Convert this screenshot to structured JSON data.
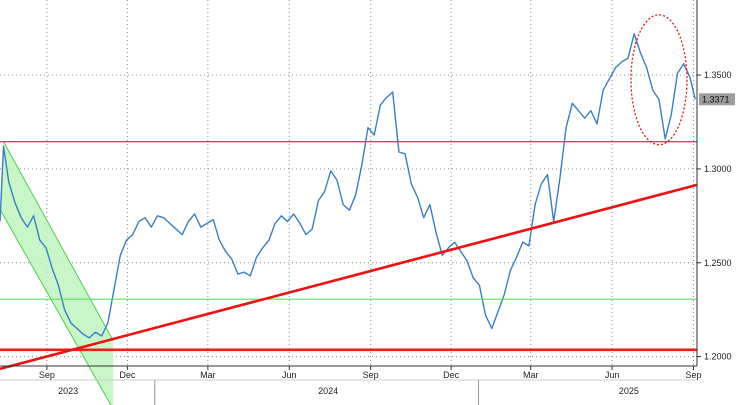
{
  "chart_data": {
    "type": "line",
    "series_color": "#3a7fc1",
    "grid": true,
    "x_range": [
      "2023-07-10",
      "2025-09-05"
    ],
    "y_range": [
      1.195,
      1.39
    ],
    "x_ticks": [
      {
        "date": "2023-09-01",
        "label": "Sep"
      },
      {
        "date": "2023-12-01",
        "label": "Dec"
      },
      {
        "date": "2024-03-01",
        "label": "Mar"
      },
      {
        "date": "2024-06-01",
        "label": "Jun"
      },
      {
        "date": "2024-09-01",
        "label": "Sep"
      },
      {
        "date": "2024-12-01",
        "label": "Dec"
      },
      {
        "date": "2025-03-01",
        "label": "Mar"
      },
      {
        "date": "2025-06-01",
        "label": "Jun"
      },
      {
        "date": "2025-09-01",
        "label": "Sep"
      }
    ],
    "year_labels": [
      {
        "label": "2023",
        "date": "2023-09-25"
      },
      {
        "label": "2024",
        "date": "2024-07-15"
      },
      {
        "label": "2025",
        "date": "2025-06-20"
      }
    ],
    "year_dividers": [
      "2024-01-01",
      "2025-01-01"
    ],
    "y_ticks": [
      {
        "value": 1.2,
        "label": "1.2000"
      },
      {
        "value": 1.25,
        "label": "1.2500"
      },
      {
        "value": 1.3,
        "label": "1.3000"
      },
      {
        "value": 1.35,
        "label": "1.3500"
      }
    ],
    "last_value": {
      "value": 1.3371,
      "label": "1.3371",
      "color": "#9e9e9e"
    },
    "series": [
      {
        "x": [
          "2023-07-10",
          "2023-07-14",
          "2023-07-20",
          "2023-07-27",
          "2023-08-03",
          "2023-08-10",
          "2023-08-17",
          "2023-08-24",
          "2023-08-31",
          "2023-09-07",
          "2023-09-14",
          "2023-09-21",
          "2023-09-28",
          "2023-10-05",
          "2023-10-12",
          "2023-10-19",
          "2023-10-26",
          "2023-11-02",
          "2023-11-09",
          "2023-11-16",
          "2023-11-23",
          "2023-11-30",
          "2023-12-07",
          "2023-12-14",
          "2023-12-21",
          "2023-12-28",
          "2024-01-04",
          "2024-01-11",
          "2024-01-18",
          "2024-01-25",
          "2024-02-01",
          "2024-02-08",
          "2024-02-15",
          "2024-02-22",
          "2024-02-29",
          "2024-03-07",
          "2024-03-14",
          "2024-03-21",
          "2024-03-28",
          "2024-04-04",
          "2024-04-11",
          "2024-04-18",
          "2024-04-25",
          "2024-05-02",
          "2024-05-09",
          "2024-05-16",
          "2024-05-23",
          "2024-05-30",
          "2024-06-06",
          "2024-06-13",
          "2024-06-20",
          "2024-06-27",
          "2024-07-04",
          "2024-07-11",
          "2024-07-18",
          "2024-07-25",
          "2024-08-01",
          "2024-08-08",
          "2024-08-15",
          "2024-08-22",
          "2024-08-29",
          "2024-09-05",
          "2024-09-12",
          "2024-09-19",
          "2024-09-26",
          "2024-10-03",
          "2024-10-10",
          "2024-10-17",
          "2024-10-24",
          "2024-10-31",
          "2024-11-07",
          "2024-11-14",
          "2024-11-21",
          "2024-11-28",
          "2024-12-05",
          "2024-12-12",
          "2024-12-19",
          "2024-12-26",
          "2025-01-02",
          "2025-01-09",
          "2025-01-16",
          "2025-01-23",
          "2025-01-30",
          "2025-02-06",
          "2025-02-13",
          "2025-02-20",
          "2025-02-27",
          "2025-03-06",
          "2025-03-13",
          "2025-03-20",
          "2025-03-27",
          "2025-04-03",
          "2025-04-10",
          "2025-04-17",
          "2025-04-24",
          "2025-05-01",
          "2025-05-08",
          "2025-05-15",
          "2025-05-22",
          "2025-05-29",
          "2025-06-05",
          "2025-06-12",
          "2025-06-19",
          "2025-06-26",
          "2025-07-03",
          "2025-07-10",
          "2025-07-17",
          "2025-07-24",
          "2025-07-31",
          "2025-08-07",
          "2025-08-14",
          "2025-08-21",
          "2025-08-28",
          "2025-09-03"
        ],
        "y": [
          1.272,
          1.312,
          1.293,
          1.282,
          1.274,
          1.269,
          1.275,
          1.262,
          1.258,
          1.247,
          1.238,
          1.225,
          1.218,
          1.215,
          1.212,
          1.21,
          1.213,
          1.211,
          1.218,
          1.236,
          1.254,
          1.262,
          1.265,
          1.272,
          1.274,
          1.269,
          1.275,
          1.274,
          1.271,
          1.268,
          1.265,
          1.272,
          1.276,
          1.269,
          1.271,
          1.273,
          1.262,
          1.256,
          1.252,
          1.244,
          1.245,
          1.243,
          1.253,
          1.258,
          1.262,
          1.271,
          1.275,
          1.272,
          1.276,
          1.271,
          1.265,
          1.268,
          1.283,
          1.288,
          1.299,
          1.294,
          1.281,
          1.278,
          1.286,
          1.302,
          1.322,
          1.318,
          1.334,
          1.338,
          1.341,
          1.309,
          1.308,
          1.292,
          1.285,
          1.274,
          1.281,
          1.266,
          1.254,
          1.258,
          1.261,
          1.256,
          1.251,
          1.242,
          1.238,
          1.222,
          1.215,
          1.224,
          1.233,
          1.246,
          1.253,
          1.261,
          1.259,
          1.281,
          1.292,
          1.297,
          1.272,
          1.295,
          1.322,
          1.335,
          1.331,
          1.327,
          1.331,
          1.324,
          1.342,
          1.348,
          1.354,
          1.357,
          1.359,
          1.372,
          1.362,
          1.354,
          1.342,
          1.337,
          1.316,
          1.329,
          1.351,
          1.356,
          1.349,
          1.3371
        ]
      }
    ],
    "annotations": {
      "support_line": {
        "value": 1.2036,
        "color": "#ff1a1a"
      },
      "resistance_line": {
        "value": 1.3145,
        "color": "#ff3366"
      },
      "green_line": {
        "value": 1.2306,
        "color": "#5ee05e"
      },
      "trendline": {
        "from": {
          "date": "2023-07-10",
          "value": 1.1935
        },
        "to": {
          "date": "2025-09-05",
          "value": 1.2915
        },
        "color": "#ee1111"
      },
      "down_channel": {
        "upper": [
          {
            "date": "2023-07-14",
            "value": 1.3145
          },
          {
            "date": "2023-11-15",
            "value": 1.2085
          }
        ],
        "lower": [
          {
            "date": "2023-07-10",
            "value": 1.2785
          },
          {
            "date": "2023-11-15",
            "value": 1.172
          }
        ],
        "fill": "#bff5bf",
        "stroke": "#4ccf4c"
      },
      "highlight_ellipse": {
        "center_date": "2025-07-24",
        "center_value": 1.3475,
        "color": "#ee1111"
      }
    }
  }
}
